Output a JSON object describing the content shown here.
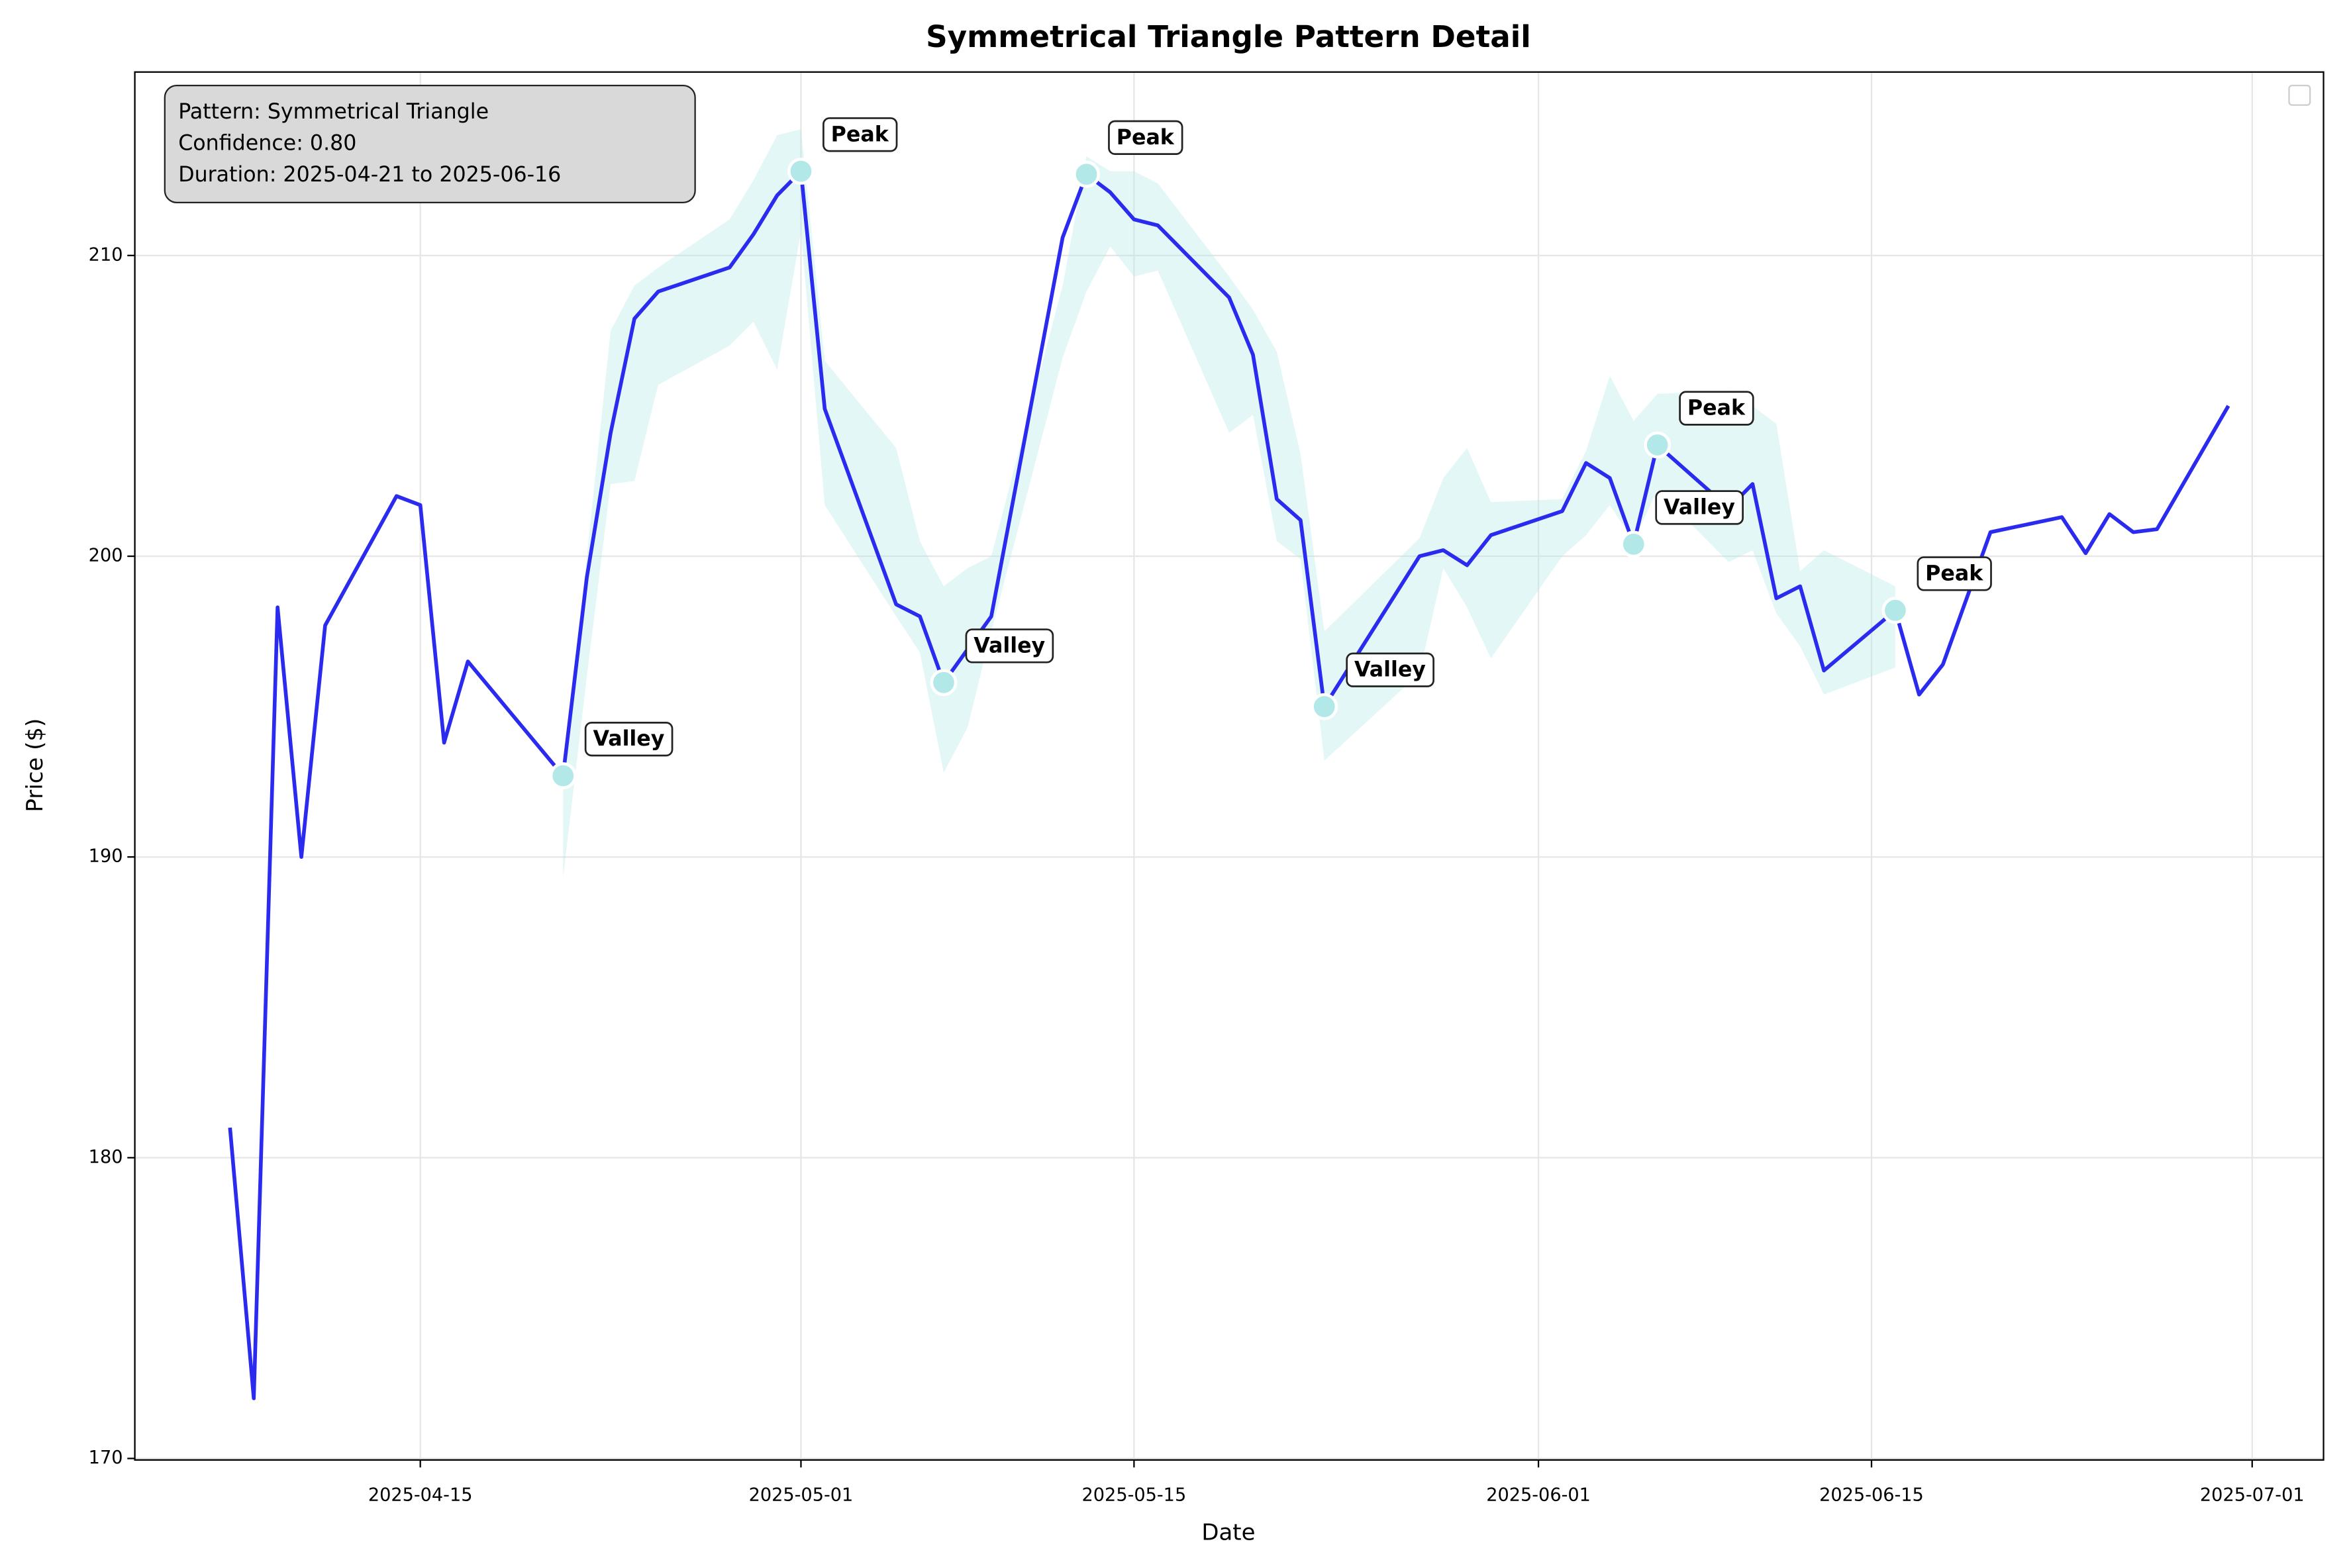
{
  "chart_data": {
    "type": "line",
    "title": "Symmetrical Triangle Pattern Detail",
    "x_label": "Date",
    "y_label": "Price ($)",
    "info_lines": [
      "Pattern: Symmetrical Triangle",
      "Confidence: 0.80",
      "Duration: 2025-04-21 to 2025-06-16"
    ],
    "x": [
      "2025-04-07",
      "2025-04-08",
      "2025-04-09",
      "2025-04-10",
      "2025-04-11",
      "2025-04-14",
      "2025-04-15",
      "2025-04-16",
      "2025-04-17",
      "2025-04-21",
      "2025-04-22",
      "2025-04-23",
      "2025-04-24",
      "2025-04-25",
      "2025-04-28",
      "2025-04-29",
      "2025-04-30",
      "2025-05-01",
      "2025-05-02",
      "2025-05-05",
      "2025-05-06",
      "2025-05-07",
      "2025-05-08",
      "2025-05-09",
      "2025-05-12",
      "2025-05-13",
      "2025-05-14",
      "2025-05-15",
      "2025-05-16",
      "2025-05-19",
      "2025-05-20",
      "2025-05-21",
      "2025-05-22",
      "2025-05-23",
      "2025-05-27",
      "2025-05-28",
      "2025-05-29",
      "2025-05-30",
      "2025-06-02",
      "2025-06-03",
      "2025-06-04",
      "2025-06-05",
      "2025-06-06",
      "2025-06-09",
      "2025-06-10",
      "2025-06-11",
      "2025-06-12",
      "2025-06-13",
      "2025-06-16",
      "2025-06-17",
      "2025-06-18",
      "2025-06-20",
      "2025-06-23",
      "2025-06-24",
      "2025-06-25",
      "2025-06-26",
      "2025-06-27",
      "2025-06-30"
    ],
    "series": [
      {
        "color": "#2b2bf0",
        "values": [
          181.0,
          172.0,
          198.3,
          190.0,
          197.7,
          202.0,
          201.7,
          193.8,
          196.5,
          192.7,
          199.3,
          204.1,
          207.9,
          208.8,
          209.6,
          210.7,
          212.0,
          212.8,
          204.9,
          198.4,
          198.0,
          195.8,
          196.9,
          198.0,
          210.6,
          212.7,
          212.1,
          211.2,
          211.0,
          208.6,
          206.7,
          201.9,
          201.2,
          195.0,
          200.0,
          200.2,
          199.7,
          200.7,
          201.5,
          203.1,
          202.6,
          200.4,
          203.7,
          201.6,
          202.4,
          198.6,
          199.0,
          196.2,
          198.2,
          195.4,
          196.4,
          200.8,
          201.3,
          200.1,
          201.4,
          200.8,
          200.9,
          205.0
        ]
      },
      {
        "color": "#b2e8e8",
        "values": [
          null,
          null,
          null,
          null,
          null,
          null,
          null,
          null,
          null,
          193.0,
          200.0,
          207.5,
          209.0,
          209.6,
          211.2,
          212.5,
          214.0,
          214.2,
          206.5,
          203.6,
          200.5,
          199.0,
          199.6,
          200.0,
          209.0,
          213.3,
          212.8,
          212.8,
          212.4,
          209.3,
          208.2,
          206.8,
          203.4,
          197.5,
          200.6,
          202.6,
          203.6,
          201.8,
          201.9,
          203.5,
          206.0,
          204.5,
          205.4,
          205.5,
          205.0,
          204.4,
          199.5,
          200.2,
          199.0,
          null,
          null,
          null,
          null,
          null,
          null,
          null,
          null,
          null
        ]
      },
      {
        "color": "#b2e8e8",
        "values": [
          null,
          null,
          null,
          null,
          null,
          null,
          null,
          null,
          null,
          189.3,
          196.0,
          202.4,
          202.5,
          205.7,
          207.0,
          207.8,
          206.2,
          210.8,
          201.7,
          198.0,
          196.8,
          192.8,
          194.3,
          197.5,
          206.6,
          208.8,
          210.3,
          209.3,
          209.5,
          204.1,
          204.7,
          200.5,
          199.9,
          193.2,
          196.1,
          199.6,
          198.3,
          196.6,
          200.0,
          200.7,
          201.7,
          200.5,
          202.2,
          199.8,
          200.2,
          198.1,
          197.0,
          195.4,
          196.3,
          null,
          null,
          null,
          null,
          null,
          null,
          null,
          null,
          null
        ]
      }
    ],
    "points": {
      "color": "#b2e8e8",
      "x": [
        "2025-04-21",
        "2025-05-01",
        "2025-05-07",
        "2025-05-13",
        "2025-05-23",
        "2025-06-05",
        "2025-06-06",
        "2025-06-16"
      ],
      "values": [
        192.7,
        212.8,
        195.8,
        212.7,
        195.0,
        200.4,
        203.7,
        198.2
      ],
      "labels": [
        "Valley",
        "Peak",
        "Valley",
        "Peak",
        "Valley",
        "Valley",
        "Peak",
        "Peak"
      ]
    },
    "xlim": [
      "2025-04-03",
      "2025-07-04"
    ],
    "xticks": [
      "2025-04-15",
      "2025-05-01",
      "2025-05-15",
      "2025-06-01",
      "2025-06-15",
      "2025-07-01"
    ],
    "ylim": [
      169.95,
      216.1
    ],
    "yticks": [
      170,
      180,
      190,
      200,
      210
    ],
    "grid": true
  }
}
